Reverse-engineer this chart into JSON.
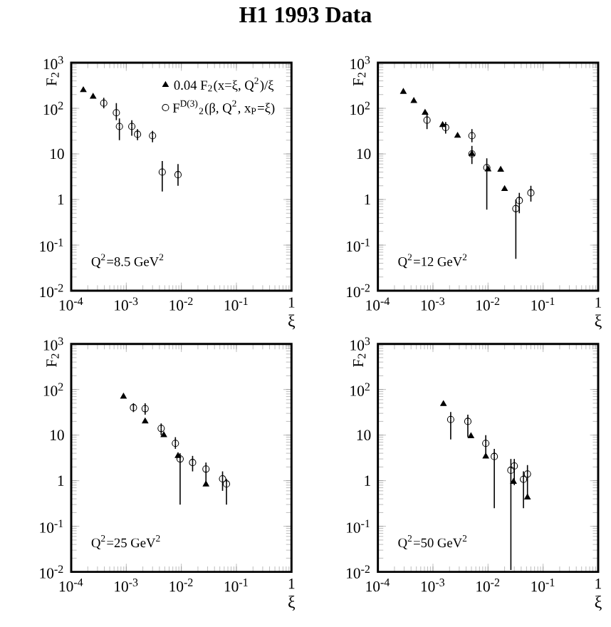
{
  "chart_data": [
    {
      "type": "scatter",
      "title": "H1 1993 Data",
      "xlabel": "ξ",
      "ylabel": "F$_{2}$",
      "log": "xy",
      "legend": "top right",
      "annotations": [
        "Q$^{2}$=8.5 GeV$^{2}$"
      ],
      "xlim": [
        0.0001,
        1
      ],
      "ylim": [
        0.01,
        1000
      ],
      "xticks": [
        {
          "value": 0.0001,
          "label": "10$^{-4}$"
        },
        {
          "value": 0.001,
          "label": "10$^{-3}$"
        },
        {
          "value": 0.01,
          "label": "10$^{-2}$"
        },
        {
          "value": 0.1,
          "label": "10$^{-1}$"
        },
        1
      ],
      "yticks": [
        {
          "value": 0.01,
          "label": "10$^{-2}$"
        },
        {
          "value": 0.1,
          "label": "10$^{-1}$"
        },
        1,
        10,
        {
          "value": 100,
          "label": "10$^{2}$"
        },
        {
          "value": 1000,
          "label": "10$^{3}$"
        }
      ],
      "series": [
        {
          "name": "0.04 F$_{2}$(x=ξ, Q$^{2}$)/ξ",
          "color": "#000000",
          "marker": "triangle",
          "x": [
            0.000166,
            0.00025
          ],
          "values": [
            250,
            180
          ]
        },
        {
          "name": "F$^{D(3)}$$_{2}$(β, Q$^{2}$, x$_{P}$=ξ)",
          "color": "#000000",
          "marker": "circle",
          "x": [
            0.00039,
            0.00066,
            0.00075,
            0.00126,
            0.0016,
            0.003,
            0.0045,
            0.0087
          ],
          "values": [
            130,
            80,
            40,
            40,
            27,
            25,
            4,
            3.5
          ],
          "errors": [
            [
              100,
              170
            ],
            [
              55,
              130
            ],
            [
              20,
              60
            ],
            [
              25,
              55
            ],
            [
              20,
              35
            ],
            [
              18,
              32
            ],
            [
              1.5,
              7
            ],
            [
              2,
              6
            ]
          ]
        }
      ]
    },
    {
      "type": "scatter",
      "xlabel": "ξ",
      "ylabel": "F$_{2}$",
      "log": "xy",
      "annotations": [
        "Q$^{2}$=12 GeV$^{2}$"
      ],
      "xlim": [
        0.0001,
        1
      ],
      "ylim": [
        0.01,
        1000
      ],
      "xticks": [
        {
          "value": 0.0001,
          "label": "10$^{-4}$"
        },
        {
          "value": 0.001,
          "label": "10$^{-3}$"
        },
        {
          "value": 0.01,
          "label": "10$^{-2}$"
        },
        {
          "value": 0.1,
          "label": "10$^{-1}$"
        },
        1
      ],
      "yticks": [
        {
          "value": 0.01,
          "label": "10$^{-2}$"
        },
        {
          "value": 0.1,
          "label": "10$^{-1}$"
        },
        1,
        10,
        {
          "value": 100,
          "label": "10$^{2}$"
        },
        {
          "value": 1000,
          "label": "10$^{3}$"
        }
      ],
      "series": [
        {
          "color": "#000000",
          "marker": "triangle",
          "x": [
            0.00029,
            0.00045,
            0.00072,
            0.0015,
            0.0028,
            0.0051,
            0.01,
            0.017,
            0.02
          ],
          "values": [
            230,
            145,
            80,
            43,
            25,
            10,
            4.6,
            4.5,
            1.7
          ]
        },
        {
          "color": "#000000",
          "marker": "circle",
          "x": [
            0.00078,
            0.0017,
            0.0051,
            0.0051,
            0.0095,
            0.032,
            0.037,
            0.06
          ],
          "values": [
            55,
            38,
            25,
            10,
            5,
            0.63,
            0.95,
            1.4
          ],
          "errors": [
            [
              35,
              80
            ],
            [
              28,
              50
            ],
            [
              18,
              35
            ],
            [
              6,
              15
            ],
            [
              0.6,
              8
            ],
            [
              0.05,
              1.0
            ],
            [
              0.5,
              1.4
            ],
            [
              0.9,
              2
            ]
          ]
        }
      ]
    },
    {
      "type": "scatter",
      "xlabel": "ξ",
      "ylabel": "F$_{2}$",
      "log": "xy",
      "annotations": [
        "Q$^{2}$=25 GeV$^{2}$"
      ],
      "xlim": [
        0.0001,
        1
      ],
      "ylim": [
        0.01,
        1000
      ],
      "xticks": [
        {
          "value": 0.0001,
          "label": "10$^{-4}$"
        },
        {
          "value": 0.001,
          "label": "10$^{-3}$"
        },
        {
          "value": 0.01,
          "label": "10$^{-2}$"
        },
        {
          "value": 0.1,
          "label": "10$^{-1}$"
        },
        1
      ],
      "yticks": [
        {
          "value": 0.01,
          "label": "10$^{-2}$"
        },
        {
          "value": 0.1,
          "label": "10$^{-1}$"
        },
        1,
        10,
        {
          "value": 100,
          "label": "10$^{2}$"
        },
        {
          "value": 1000,
          "label": "10$^{3}$"
        }
      ],
      "series": [
        {
          "color": "#000000",
          "marker": "triangle",
          "x": [
            0.00089,
            0.0022,
            0.0048,
            0.0087,
            0.028
          ],
          "values": [
            70,
            20,
            10,
            3.5,
            0.83
          ]
        },
        {
          "color": "#000000",
          "marker": "circle",
          "x": [
            0.00135,
            0.0022,
            0.0043,
            0.0078,
            0.0095,
            0.016,
            0.028,
            0.056,
            0.066
          ],
          "values": [
            40,
            38,
            14,
            6.6,
            3,
            2.5,
            1.8,
            1.1,
            0.85
          ],
          "errors": [
            [
              32,
              50
            ],
            [
              28,
              50
            ],
            [
              10,
              18
            ],
            [
              5,
              9
            ],
            [
              0.3,
              4
            ],
            [
              1.6,
              3.5
            ],
            [
              0.8,
              2.5
            ],
            [
              0.6,
              1.6
            ],
            [
              0.3,
              1.1
            ]
          ]
        }
      ]
    },
    {
      "type": "scatter",
      "xlabel": "ξ",
      "ylabel": "F$_{2}$",
      "log": "xy",
      "annotations": [
        "Q$^{2}$=50 GeV$^{2}$"
      ],
      "xlim": [
        0.0001,
        1
      ],
      "ylim": [
        0.01,
        1000
      ],
      "xticks": [
        {
          "value": 0.0001,
          "label": "10$^{-4}$"
        },
        {
          "value": 0.001,
          "label": "10$^{-3}$"
        },
        {
          "value": 0.01,
          "label": "10$^{-2}$"
        },
        {
          "value": 0.1,
          "label": "10$^{-1}$"
        },
        1
      ],
      "yticks": [
        {
          "value": 0.01,
          "label": "10$^{-2}$"
        },
        {
          "value": 0.1,
          "label": "10$^{-1}$"
        },
        1,
        10,
        {
          "value": 100,
          "label": "10$^{2}$"
        },
        {
          "value": 1000,
          "label": "10$^{3}$"
        }
      ],
      "series": [
        {
          "color": "#000000",
          "marker": "triangle",
          "x": [
            0.00155,
            0.0049,
            0.0091,
            0.029,
            0.052
          ],
          "values": [
            48,
            9.5,
            3.4,
            0.95,
            0.43
          ]
        },
        {
          "color": "#000000",
          "marker": "circle",
          "x": [
            0.0021,
            0.0043,
            0.0091,
            0.013,
            0.026,
            0.03,
            0.044,
            0.052
          ],
          "values": [
            22,
            20,
            6.6,
            3.4,
            1.7,
            2.1,
            1.07,
            1.4
          ],
          "errors": [
            [
              8,
              32
            ],
            [
              9,
              28
            ],
            [
              4,
              10
            ],
            [
              0.25,
              5
            ],
            [
              0.011,
              3
            ],
            [
              0.8,
              3
            ],
            [
              0.25,
              1.6
            ],
            [
              0.4,
              2.2
            ]
          ]
        }
      ]
    }
  ]
}
